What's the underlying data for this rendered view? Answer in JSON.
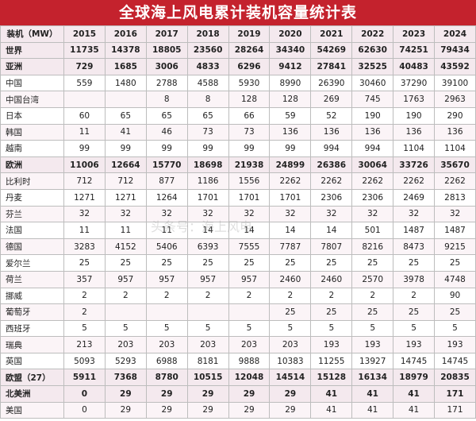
{
  "title": "全球海上风电累计装机容量统计表",
  "header": [
    "装机（MW）",
    "2015",
    "2016",
    "2017",
    "2018",
    "2019",
    "2020",
    "2021",
    "2022",
    "2023",
    "2024"
  ],
  "rows": [
    {
      "name": "世界",
      "bold": true,
      "values": [
        "11735",
        "14378",
        "18805",
        "23560",
        "28264",
        "34340",
        "54269",
        "62630",
        "74251",
        "79434"
      ]
    },
    {
      "name": "亚洲",
      "bold": true,
      "values": [
        "729",
        "1685",
        "3006",
        "4833",
        "6296",
        "9412",
        "27841",
        "32525",
        "40483",
        "43592"
      ]
    },
    {
      "name": "中国",
      "bold": false,
      "values": [
        "559",
        "1480",
        "2788",
        "4588",
        "5930",
        "8990",
        "26390",
        "30460",
        "37290",
        "39100"
      ]
    },
    {
      "name": "中国台湾",
      "bold": false,
      "values": [
        "",
        "",
        "8",
        "8",
        "128",
        "128",
        "269",
        "745",
        "1763",
        "2963"
      ]
    },
    {
      "name": "日本",
      "bold": false,
      "values": [
        "60",
        "65",
        "65",
        "65",
        "66",
        "59",
        "52",
        "190",
        "190",
        "290"
      ]
    },
    {
      "name": "韩国",
      "bold": false,
      "values": [
        "11",
        "41",
        "46",
        "73",
        "73",
        "136",
        "136",
        "136",
        "136",
        "136"
      ]
    },
    {
      "name": "越南",
      "bold": false,
      "values": [
        "99",
        "99",
        "99",
        "99",
        "99",
        "99",
        "994",
        "994",
        "1104",
        "1104"
      ]
    },
    {
      "name": "欧洲",
      "bold": true,
      "values": [
        "11006",
        "12664",
        "15770",
        "18698",
        "21938",
        "24899",
        "26386",
        "30064",
        "33726",
        "35670"
      ]
    },
    {
      "name": "比利时",
      "bold": false,
      "values": [
        "712",
        "712",
        "877",
        "1186",
        "1556",
        "2262",
        "2262",
        "2262",
        "2262",
        "2262"
      ]
    },
    {
      "name": "丹麦",
      "bold": false,
      "values": [
        "1271",
        "1271",
        "1264",
        "1701",
        "1701",
        "1701",
        "2306",
        "2306",
        "2469",
        "2813"
      ]
    },
    {
      "name": "芬兰",
      "bold": false,
      "values": [
        "32",
        "32",
        "32",
        "32",
        "32",
        "32",
        "32",
        "32",
        "32",
        "32"
      ]
    },
    {
      "name": "法国",
      "bold": false,
      "values": [
        "11",
        "11",
        "11",
        "14",
        "14",
        "14",
        "14",
        "501",
        "1487",
        "1487"
      ]
    },
    {
      "name": "德国",
      "bold": false,
      "values": [
        "3283",
        "4152",
        "5406",
        "6393",
        "7555",
        "7787",
        "7807",
        "8216",
        "8473",
        "9215"
      ]
    },
    {
      "name": "爱尔兰",
      "bold": false,
      "values": [
        "25",
        "25",
        "25",
        "25",
        "25",
        "25",
        "25",
        "25",
        "25",
        "25"
      ]
    },
    {
      "name": "荷兰",
      "bold": false,
      "values": [
        "357",
        "957",
        "957",
        "957",
        "957",
        "2460",
        "2460",
        "2570",
        "3978",
        "4748"
      ]
    },
    {
      "name": "挪威",
      "bold": false,
      "values": [
        "2",
        "2",
        "2",
        "2",
        "2",
        "2",
        "2",
        "2",
        "2",
        "90"
      ]
    },
    {
      "name": "葡萄牙",
      "bold": false,
      "values": [
        "2",
        "",
        "",
        "",
        "",
        "25",
        "25",
        "25",
        "25",
        "25"
      ]
    },
    {
      "name": "西班牙",
      "bold": false,
      "values": [
        "5",
        "5",
        "5",
        "5",
        "5",
        "5",
        "5",
        "5",
        "5",
        "5"
      ]
    },
    {
      "name": "瑞典",
      "bold": false,
      "values": [
        "213",
        "203",
        "203",
        "203",
        "203",
        "203",
        "193",
        "193",
        "193",
        "193"
      ]
    },
    {
      "name": "英国",
      "bold": false,
      "values": [
        "5093",
        "5293",
        "6988",
        "8181",
        "9888",
        "10383",
        "11255",
        "13927",
        "14745",
        "14745"
      ]
    },
    {
      "name": "欧盟（27）",
      "bold": true,
      "values": [
        "5911",
        "7368",
        "8780",
        "10515",
        "12048",
        "14514",
        "15128",
        "16134",
        "18979",
        "20835"
      ]
    },
    {
      "name": "北美洲",
      "bold": true,
      "values": [
        "0",
        "29",
        "29",
        "29",
        "29",
        "29",
        "41",
        "41",
        "41",
        "171"
      ]
    },
    {
      "name": "美国",
      "bold": false,
      "values": [
        "0",
        "29",
        "29",
        "29",
        "29",
        "29",
        "41",
        "41",
        "41",
        "171"
      ]
    }
  ],
  "watermark": "头条号：海上风电"
}
